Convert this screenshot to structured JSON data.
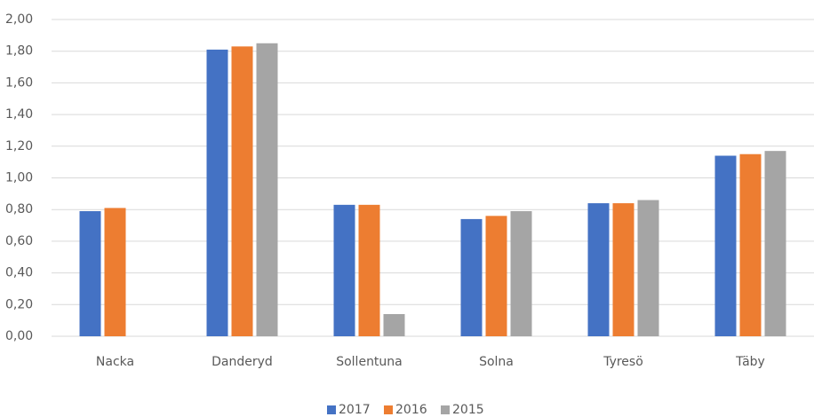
{
  "chart_data": {
    "type": "bar",
    "categories": [
      "Nacka",
      "Danderyd",
      "Sollentuna",
      "Solna",
      "Tyresö",
      "Täby"
    ],
    "series": [
      {
        "name": "2017",
        "color": "#4472c4",
        "values": [
          0.79,
          1.81,
          0.83,
          0.74,
          0.84,
          1.14
        ]
      },
      {
        "name": "2016",
        "color": "#ed7d31",
        "values": [
          0.81,
          1.83,
          0.83,
          0.76,
          0.84,
          1.15
        ]
      },
      {
        "name": "2015",
        "color": "#a5a5a5",
        "values": [
          null,
          1.85,
          0.14,
          0.79,
          0.86,
          1.17
        ]
      }
    ],
    "ylim": [
      0,
      2
    ],
    "yticks": [
      {
        "value": 0,
        "label": "0,00"
      },
      {
        "value": 0.2,
        "label": "0,20"
      },
      {
        "value": 0.4,
        "label": "0,40"
      },
      {
        "value": 0.6,
        "label": "0,60"
      },
      {
        "value": 0.8,
        "label": "0,80"
      },
      {
        "value": 1,
        "label": "1,00"
      },
      {
        "value": 1.2,
        "label": "1,20"
      },
      {
        "value": 1.4,
        "label": "1,40"
      },
      {
        "value": 1.6,
        "label": "1,60"
      },
      {
        "value": 1.8,
        "label": "1,80"
      },
      {
        "value": 2,
        "label": "2,00"
      }
    ],
    "grid": true,
    "legend": "bottom"
  }
}
